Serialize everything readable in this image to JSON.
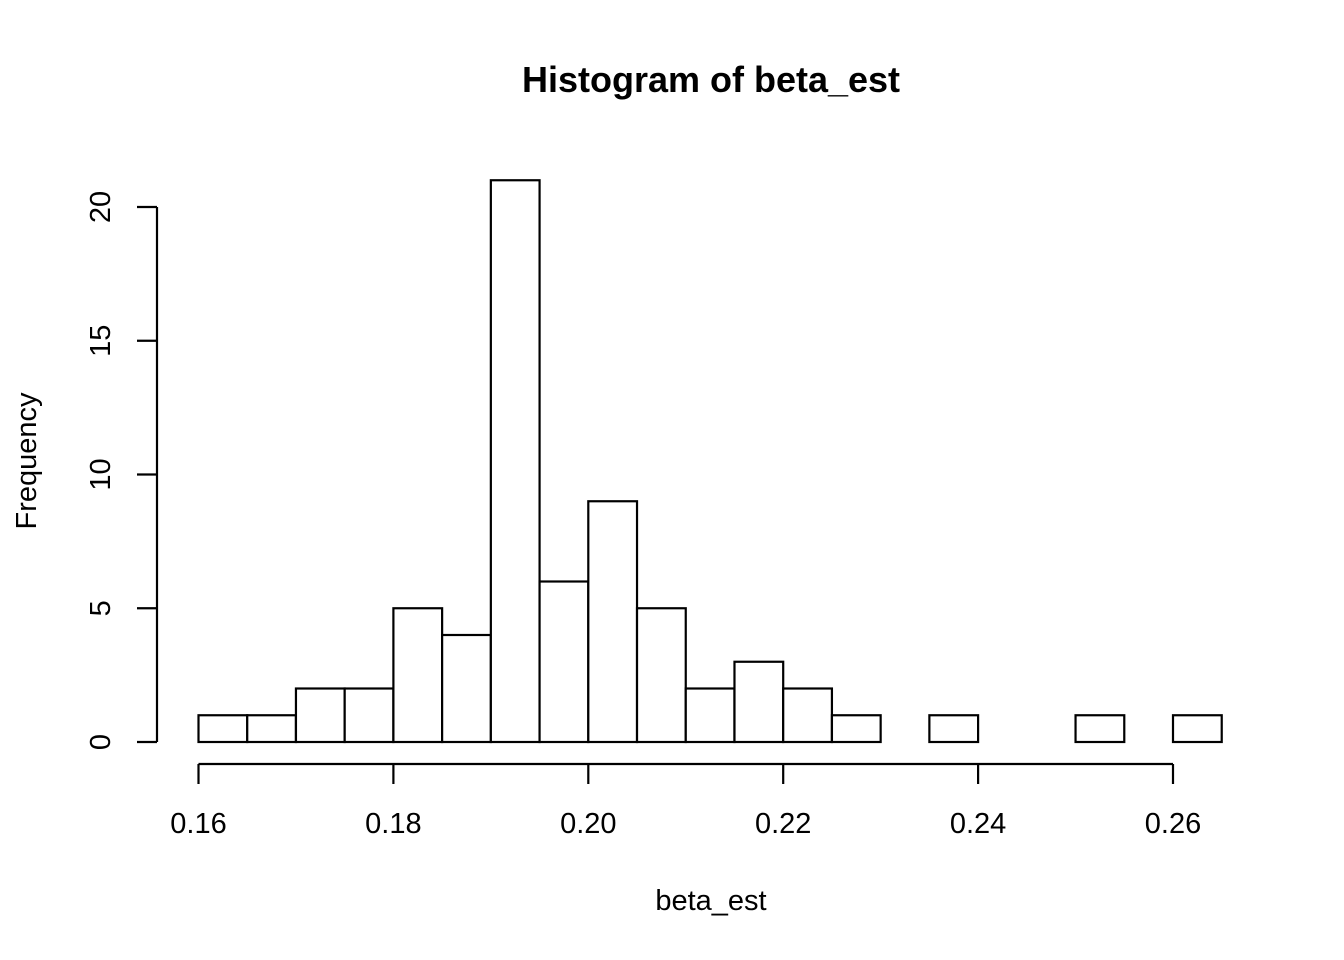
{
  "chart_data": {
    "type": "bar",
    "title": "Histogram of beta_est",
    "xlabel": "beta_est",
    "ylabel": "Frequency",
    "bins": [
      {
        "start": 0.16,
        "end": 0.165,
        "count": 1
      },
      {
        "start": 0.165,
        "end": 0.17,
        "count": 1
      },
      {
        "start": 0.17,
        "end": 0.175,
        "count": 2
      },
      {
        "start": 0.175,
        "end": 0.18,
        "count": 2
      },
      {
        "start": 0.18,
        "end": 0.185,
        "count": 5
      },
      {
        "start": 0.185,
        "end": 0.19,
        "count": 4
      },
      {
        "start": 0.19,
        "end": 0.195,
        "count": 21
      },
      {
        "start": 0.195,
        "end": 0.2,
        "count": 6
      },
      {
        "start": 0.2,
        "end": 0.205,
        "count": 9
      },
      {
        "start": 0.205,
        "end": 0.21,
        "count": 5
      },
      {
        "start": 0.21,
        "end": 0.215,
        "count": 2
      },
      {
        "start": 0.215,
        "end": 0.22,
        "count": 3
      },
      {
        "start": 0.22,
        "end": 0.225,
        "count": 2
      },
      {
        "start": 0.225,
        "end": 0.23,
        "count": 1
      },
      {
        "start": 0.23,
        "end": 0.235,
        "count": 0
      },
      {
        "start": 0.235,
        "end": 0.24,
        "count": 1
      },
      {
        "start": 0.24,
        "end": 0.245,
        "count": 0
      },
      {
        "start": 0.245,
        "end": 0.25,
        "count": 0
      },
      {
        "start": 0.25,
        "end": 0.255,
        "count": 1
      },
      {
        "start": 0.255,
        "end": 0.26,
        "count": 0
      },
      {
        "start": 0.26,
        "end": 0.265,
        "count": 1
      }
    ],
    "xlim": [
      0.16,
      0.265
    ],
    "ylim": [
      0,
      21
    ],
    "x_ticks": [
      0.16,
      0.18,
      0.2,
      0.22,
      0.24,
      0.26
    ],
    "x_tick_labels": [
      "0.16",
      "0.18",
      "0.20",
      "0.22",
      "0.24",
      "0.26"
    ],
    "y_ticks": [
      0,
      5,
      10,
      15,
      20
    ],
    "y_tick_labels": [
      "0",
      "5",
      "10",
      "15",
      "20"
    ],
    "grid": false,
    "legend": "none",
    "colors": {
      "bar_fill": "#ffffff",
      "bar_stroke": "#000000"
    }
  }
}
